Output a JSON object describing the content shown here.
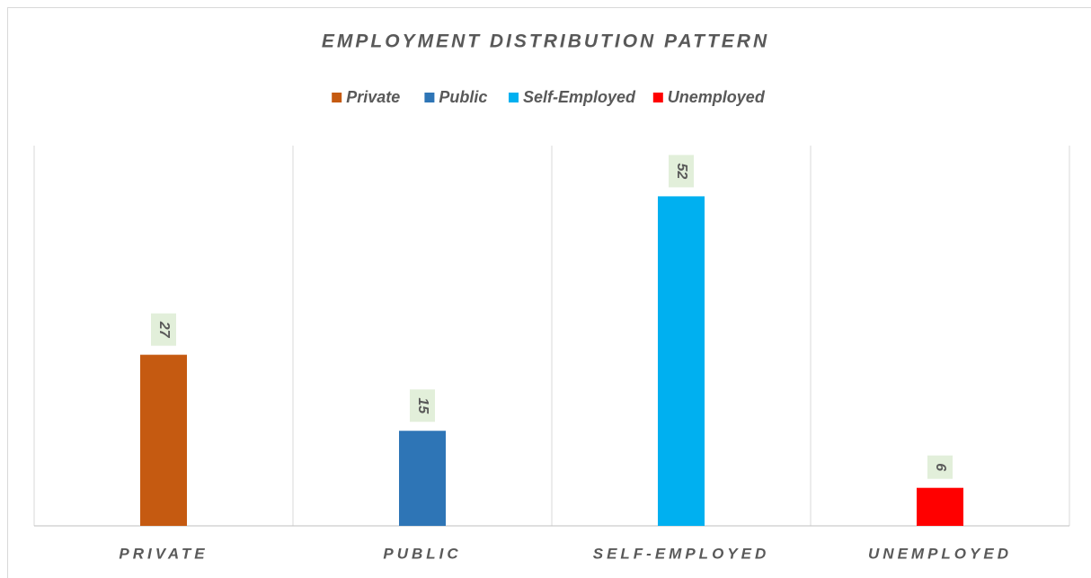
{
  "chart_data": {
    "type": "bar",
    "title": "EMPLOYMENT DISTRIBUTION PATTERN",
    "categories": [
      "PRIVATE",
      "PUBLIC",
      "SELF-EMPLOYED",
      "UNEMPLOYED"
    ],
    "series": [
      {
        "name": "Private",
        "color": "#c55a11",
        "values": [
          27,
          null,
          null,
          null
        ]
      },
      {
        "name": "Public",
        "color": "#2e75b6",
        "values": [
          null,
          15,
          null,
          null
        ]
      },
      {
        "name": "Self-Employed",
        "color": "#00b0f0",
        "values": [
          null,
          null,
          52,
          null
        ]
      },
      {
        "name": "Unemployed",
        "color": "#ff0000",
        "values": [
          null,
          null,
          null,
          6
        ]
      }
    ],
    "ylim": [
      0,
      60
    ],
    "legend": "top",
    "data_labels": true
  }
}
